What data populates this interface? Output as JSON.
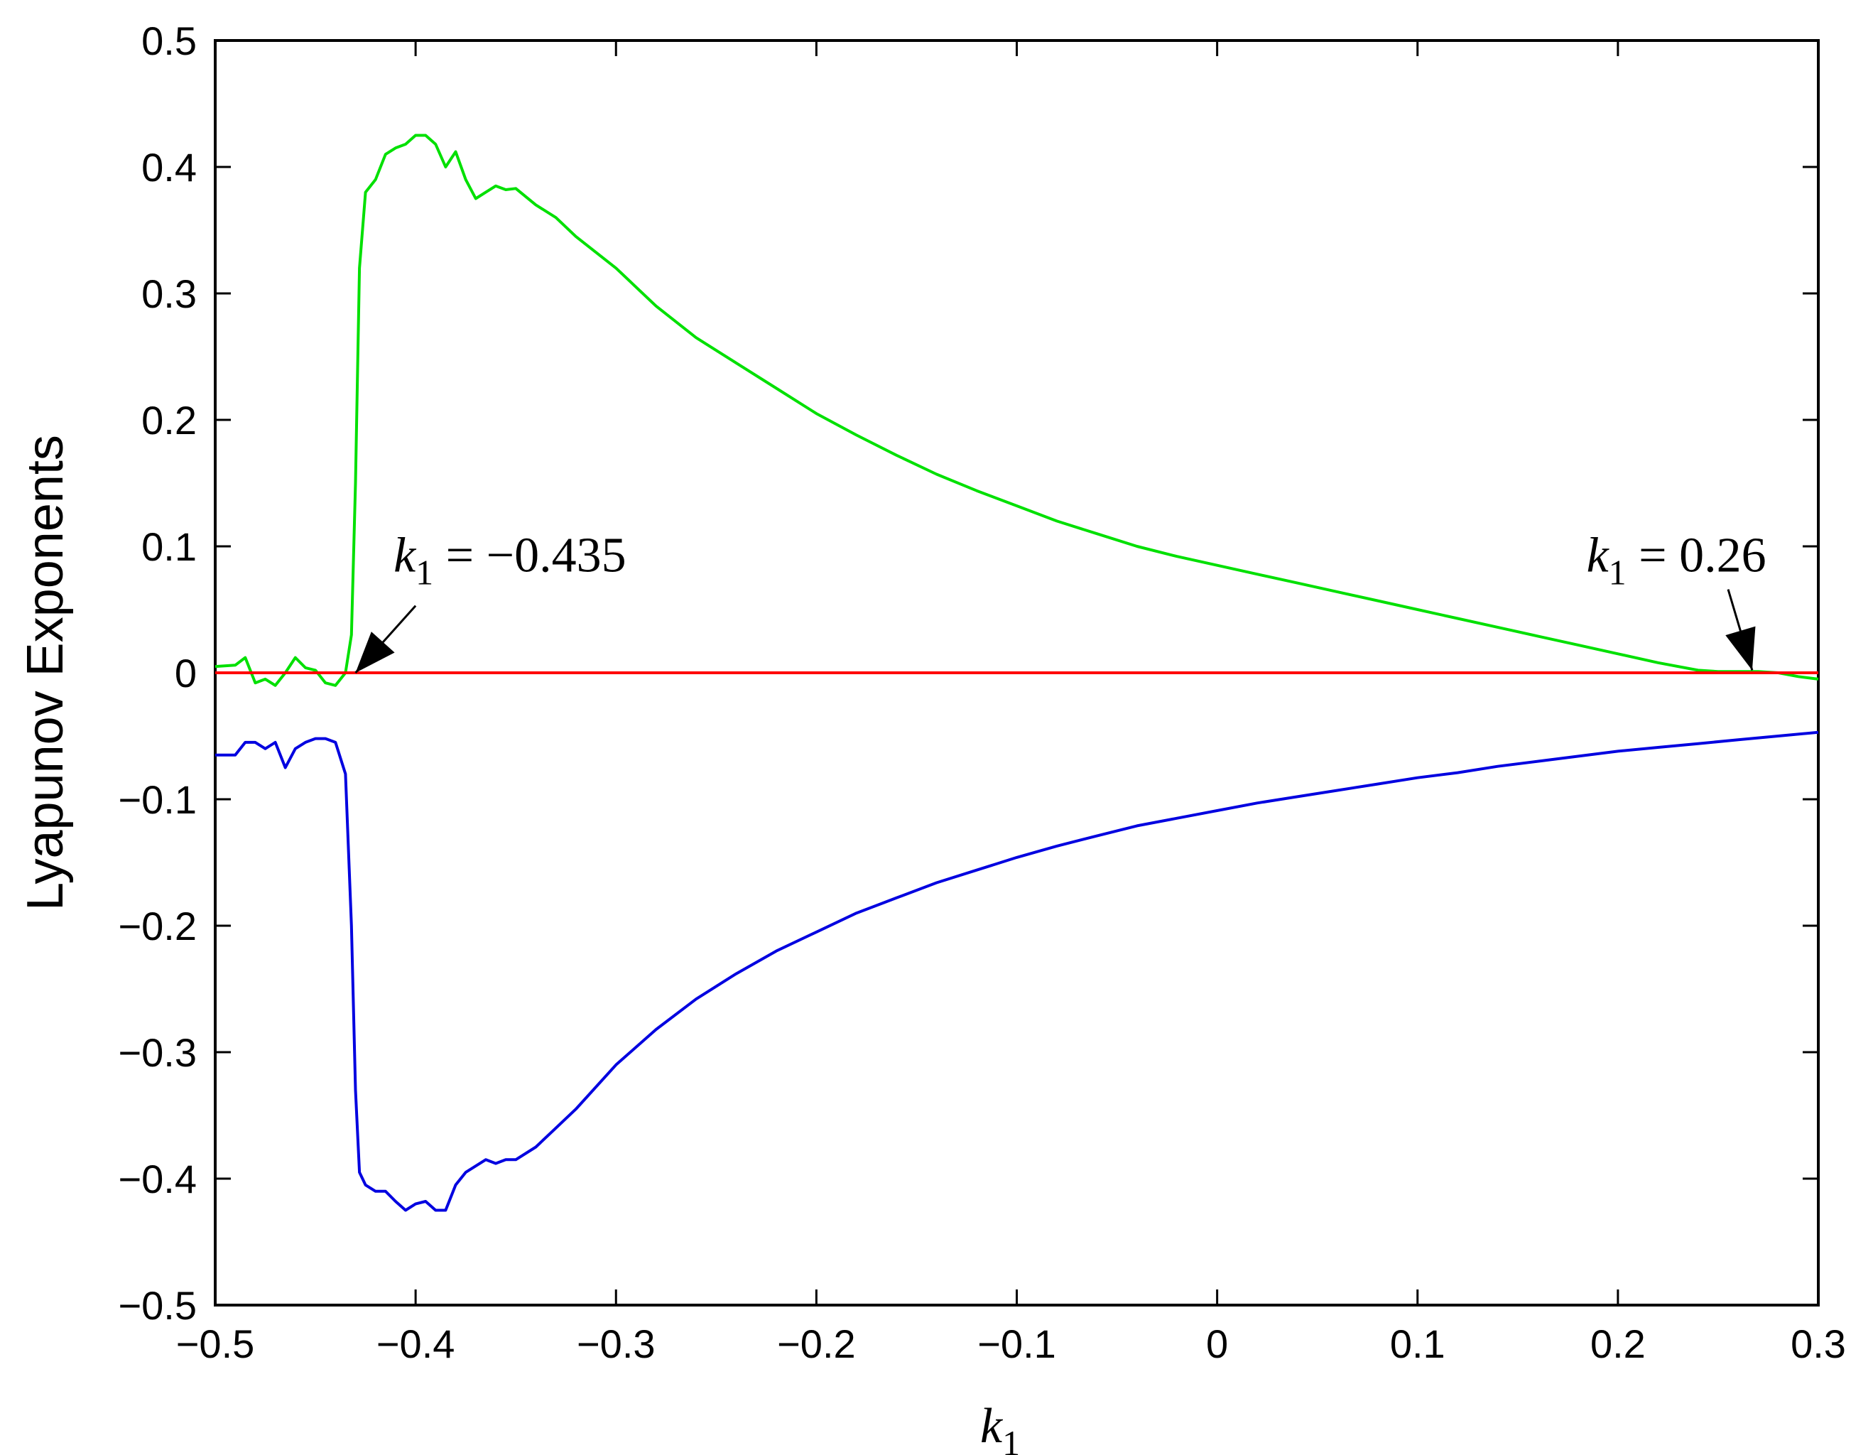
{
  "chart_data": {
    "type": "line",
    "title": "",
    "xlabel": {
      "base": "k",
      "sub": "1"
    },
    "ylabel": "Lyapunov Exponents",
    "xlim": [
      -0.5,
      0.3
    ],
    "ylim": [
      -0.5,
      0.5
    ],
    "grid": false,
    "xticks": [
      {
        "value": -0.5,
        "label": "−0.5"
      },
      {
        "value": -0.4,
        "label": "−0.4"
      },
      {
        "value": -0.3,
        "label": "−0.3"
      },
      {
        "value": -0.2,
        "label": "−0.2"
      },
      {
        "value": -0.1,
        "label": "−0.1"
      },
      {
        "value": 0,
        "label": "0"
      },
      {
        "value": 0.1,
        "label": "0.1"
      },
      {
        "value": 0.2,
        "label": "0.2"
      },
      {
        "value": 0.3,
        "label": "0.3"
      }
    ],
    "yticks": [
      {
        "value": 0.5,
        "label": "0.5"
      },
      {
        "value": 0.4,
        "label": "0.4"
      },
      {
        "value": 0.3,
        "label": "0.3"
      },
      {
        "value": 0.2,
        "label": "0.2"
      },
      {
        "value": 0.1,
        "label": "0.1"
      },
      {
        "value": 0,
        "label": "0"
      },
      {
        "value": -0.1,
        "label": "−0.1"
      },
      {
        "value": -0.2,
        "label": "−0.2"
      },
      {
        "value": -0.3,
        "label": "−0.3"
      },
      {
        "value": -0.4,
        "label": "−0.4"
      },
      {
        "value": -0.5,
        "label": "−0.5"
      }
    ],
    "series": [
      {
        "color": "#00e000",
        "x": [
          -0.5,
          -0.49,
          -0.485,
          -0.48,
          -0.475,
          -0.47,
          -0.465,
          -0.46,
          -0.455,
          -0.45,
          -0.445,
          -0.44,
          -0.435,
          -0.432,
          -0.43,
          -0.428,
          -0.425,
          -0.42,
          -0.415,
          -0.41,
          -0.405,
          -0.4,
          -0.395,
          -0.39,
          -0.385,
          -0.38,
          -0.375,
          -0.37,
          -0.365,
          -0.36,
          -0.355,
          -0.35,
          -0.34,
          -0.33,
          -0.32,
          -0.3,
          -0.28,
          -0.26,
          -0.24,
          -0.22,
          -0.2,
          -0.18,
          -0.16,
          -0.14,
          -0.12,
          -0.1,
          -0.08,
          -0.06,
          -0.04,
          -0.02,
          0,
          0.02,
          0.04,
          0.06,
          0.08,
          0.1,
          0.12,
          0.14,
          0.16,
          0.18,
          0.2,
          0.22,
          0.24,
          0.25,
          0.26,
          0.27,
          0.28,
          0.29,
          0.3
        ],
        "y": [
          0.005,
          0.006,
          0.012,
          -0.008,
          -0.005,
          -0.01,
          0.0,
          0.012,
          0.004,
          0.002,
          -0.008,
          -0.01,
          0.0,
          0.03,
          0.15,
          0.32,
          0.38,
          0.39,
          0.41,
          0.415,
          0.418,
          0.425,
          0.425,
          0.418,
          0.4,
          0.412,
          0.39,
          0.375,
          0.38,
          0.385,
          0.382,
          0.383,
          0.37,
          0.36,
          0.345,
          0.32,
          0.29,
          0.265,
          0.245,
          0.225,
          0.205,
          0.188,
          0.172,
          0.157,
          0.144,
          0.132,
          0.12,
          0.11,
          0.1,
          0.092,
          0.085,
          0.078,
          0.071,
          0.064,
          0.057,
          0.05,
          0.043,
          0.036,
          0.029,
          0.022,
          0.015,
          0.008,
          0.002,
          0.001,
          0.001,
          0.001,
          0.0,
          -0.003,
          -0.005
        ]
      },
      {
        "color": "#ff0000",
        "x": [
          -0.5,
          0.3
        ],
        "y": [
          0.0,
          0.0
        ]
      },
      {
        "color": "#0000e0",
        "x": [
          -0.5,
          -0.49,
          -0.485,
          -0.48,
          -0.475,
          -0.47,
          -0.465,
          -0.46,
          -0.455,
          -0.45,
          -0.445,
          -0.44,
          -0.435,
          -0.432,
          -0.43,
          -0.428,
          -0.425,
          -0.42,
          -0.415,
          -0.41,
          -0.405,
          -0.4,
          -0.395,
          -0.39,
          -0.385,
          -0.38,
          -0.375,
          -0.37,
          -0.365,
          -0.36,
          -0.355,
          -0.35,
          -0.34,
          -0.33,
          -0.32,
          -0.3,
          -0.28,
          -0.26,
          -0.24,
          -0.22,
          -0.2,
          -0.18,
          -0.16,
          -0.14,
          -0.12,
          -0.1,
          -0.08,
          -0.06,
          -0.04,
          -0.02,
          0,
          0.02,
          0.04,
          0.06,
          0.08,
          0.1,
          0.12,
          0.14,
          0.16,
          0.18,
          0.2,
          0.22,
          0.24,
          0.26,
          0.28,
          0.3
        ],
        "y": [
          -0.065,
          -0.065,
          -0.055,
          -0.055,
          -0.06,
          -0.055,
          -0.075,
          -0.06,
          -0.055,
          -0.052,
          -0.052,
          -0.055,
          -0.08,
          -0.2,
          -0.33,
          -0.395,
          -0.405,
          -0.41,
          -0.41,
          -0.418,
          -0.425,
          -0.42,
          -0.418,
          -0.425,
          -0.425,
          -0.405,
          -0.395,
          -0.39,
          -0.385,
          -0.388,
          -0.385,
          -0.385,
          -0.375,
          -0.36,
          -0.345,
          -0.31,
          -0.282,
          -0.258,
          -0.238,
          -0.22,
          -0.205,
          -0.19,
          -0.178,
          -0.166,
          -0.156,
          -0.146,
          -0.137,
          -0.129,
          -0.121,
          -0.115,
          -0.109,
          -0.103,
          -0.098,
          -0.093,
          -0.088,
          -0.083,
          -0.079,
          -0.074,
          -0.07,
          -0.066,
          -0.062,
          -0.059,
          -0.056,
          -0.053,
          -0.05,
          -0.047
        ]
      }
    ],
    "annotations": [
      {
        "base": "k",
        "sub": "1",
        "rest": " = −0.435",
        "target": [
          -0.43,
          0.0
        ],
        "arrow_from": [
          -0.4,
          0.053
        ]
      },
      {
        "base": "k",
        "sub": "1",
        "rest": " = 0.26",
        "target": [
          0.267,
          0.002
        ],
        "arrow_from": [
          0.255,
          0.066
        ]
      }
    ]
  }
}
